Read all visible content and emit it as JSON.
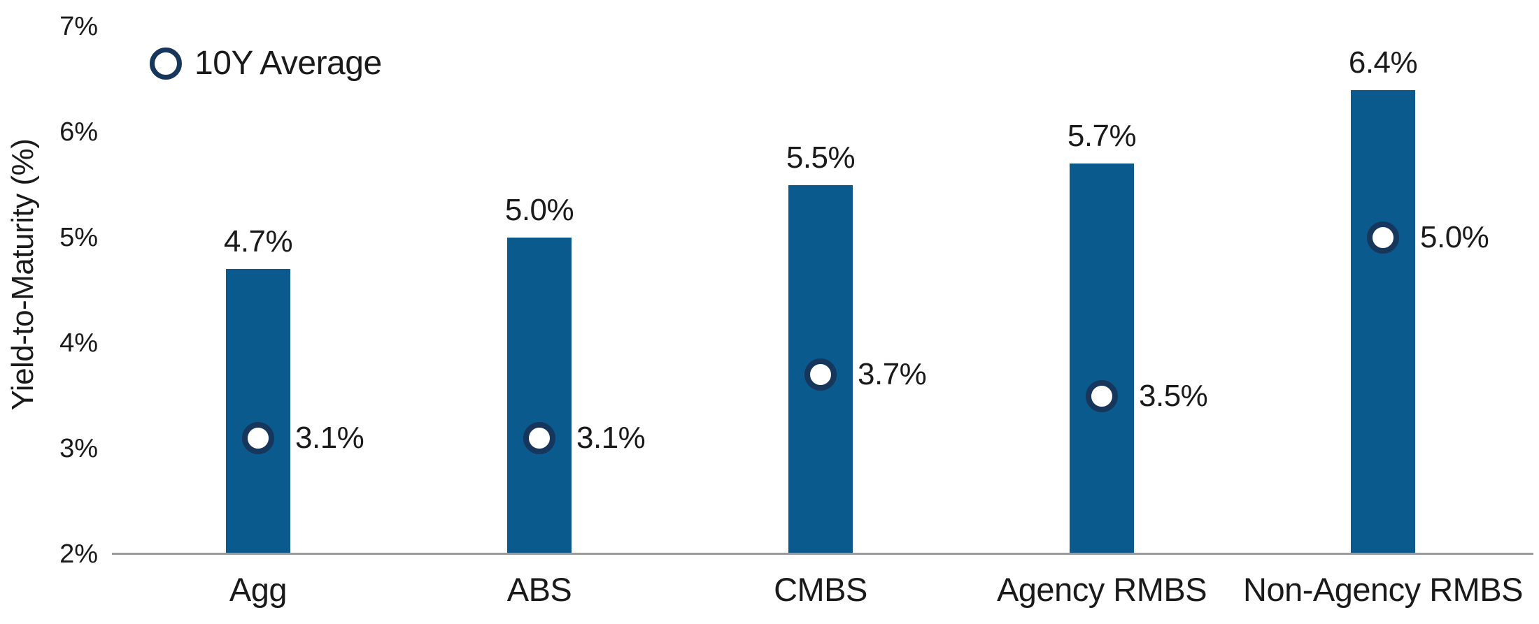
{
  "chart_data": {
    "type": "bar",
    "title": "",
    "categories": [
      "Agg",
      "ABS",
      "CMBS",
      "Agency RMBS",
      "Non-Agency RMBS"
    ],
    "series": [
      {
        "name": "Yield-to-Maturity",
        "render": "bar",
        "values": [
          4.7,
          5.0,
          5.5,
          5.7,
          6.4
        ],
        "labels": [
          "4.7%",
          "5.0%",
          "5.5%",
          "5.7%",
          "6.4%"
        ]
      },
      {
        "name": "10Y Average",
        "render": "open-circle-marker",
        "values": [
          3.1,
          3.1,
          3.7,
          3.5,
          5.0
        ],
        "labels": [
          "3.1%",
          "3.1%",
          "3.7%",
          "3.5%",
          "5.0%"
        ]
      }
    ],
    "xlabel": "",
    "ylabel": "Yield-to-Maturity (%)",
    "ylim": [
      2,
      7
    ],
    "yticks": [
      2,
      3,
      4,
      5,
      6,
      7
    ],
    "ytick_labels": [
      "2%",
      "3%",
      "4%",
      "5%",
      "6%",
      "7%"
    ],
    "legend": {
      "label": "10Y Average",
      "position": "top-left",
      "marker": "open-circle"
    },
    "grid": false
  },
  "colors": {
    "bar": "#0A5A8E",
    "marker_ring": "#16365C",
    "marker_fill": "#FFFFFF",
    "axis_line": "#9B9B9B",
    "text": "#1A1A1A",
    "background": "#FFFFFF"
  }
}
